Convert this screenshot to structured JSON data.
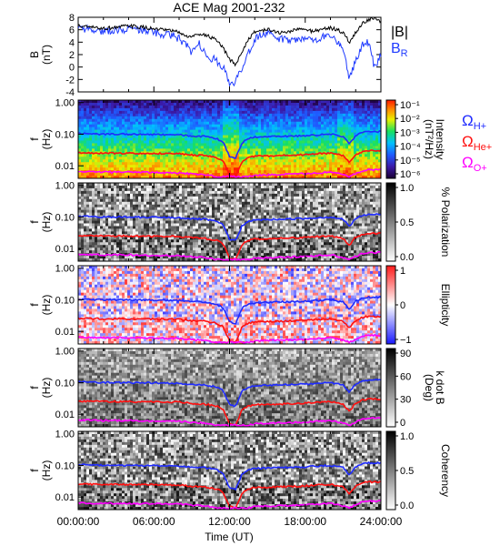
{
  "chart_data": {
    "type": "line",
    "title": "ACE Mag 2001-232",
    "xlabel": "Time (UT)",
    "x_range": [
      "00:00:00",
      "24:00:00"
    ],
    "x_ticks": [
      "00:00:00",
      "06:00:00",
      "12:00:00",
      "18:00:00",
      "24:00:00"
    ],
    "top_panel": {
      "ylabel_main": "B",
      "ylabel_unit": "(nT)",
      "ylim": [
        -4,
        8
      ],
      "y_ticks": [
        "8",
        "6",
        "4",
        "2",
        "0",
        "-2",
        "-4"
      ],
      "series": [
        {
          "name": "|B|",
          "color": "#000000",
          "x": [
            0,
            0.5,
            1,
            1.5,
            2,
            2.5,
            3,
            3.5,
            4,
            4.5,
            5,
            5.5,
            6,
            6.5,
            7,
            7.5,
            8,
            8.5,
            9,
            9.5,
            10,
            10.5,
            11,
            11.5,
            12,
            12.5,
            13,
            13.5,
            14,
            14.5,
            15,
            15.5,
            16,
            16.5,
            17,
            17.5,
            18,
            18.5,
            19,
            19.5,
            20,
            20.5,
            21,
            21.5,
            22,
            22.5,
            23,
            23.5,
            24
          ],
          "y": [
            6.6,
            6.5,
            6.4,
            6.3,
            6.2,
            6.3,
            6.4,
            6.5,
            6.6,
            6.5,
            6.4,
            6.3,
            6.1,
            6.0,
            5.9,
            5.8,
            5.6,
            5.0,
            4.8,
            5.4,
            5.2,
            4.8,
            4.2,
            3.0,
            1.2,
            0.4,
            2.5,
            4.5,
            5.6,
            5.9,
            6.0,
            5.8,
            5.5,
            5.6,
            5.9,
            6.1,
            6.0,
            5.8,
            5.9,
            6.2,
            6.3,
            6.0,
            5.5,
            4.0,
            5.5,
            7.0,
            7.6,
            7.8,
            7.2
          ]
        },
        {
          "name": "B_R",
          "color": "#1f3bff",
          "x": [
            0,
            0.5,
            1,
            1.5,
            2,
            2.5,
            3,
            3.5,
            4,
            4.5,
            5,
            5.5,
            6,
            6.5,
            7,
            7.5,
            8,
            8.5,
            9,
            9.5,
            10,
            10.5,
            11,
            11.5,
            12,
            12.5,
            13,
            13.5,
            14,
            14.5,
            15,
            15.5,
            16,
            16.5,
            17,
            17.5,
            18,
            18.5,
            19,
            19.5,
            20,
            20.5,
            21,
            21.5,
            22,
            22.5,
            23,
            23.5,
            24
          ],
          "y": [
            6.2,
            6.1,
            6.0,
            5.9,
            5.8,
            5.9,
            6.0,
            6.1,
            6.1,
            6.0,
            5.9,
            5.8,
            5.5,
            5.4,
            5.2,
            5.0,
            4.6,
            3.6,
            2.4,
            4.0,
            2.5,
            1.5,
            1.0,
            0.0,
            -2.8,
            -2.4,
            0.0,
            2.5,
            4.4,
            5.2,
            5.3,
            5.0,
            4.4,
            4.6,
            4.2,
            4.6,
            4.8,
            4.2,
            4.4,
            5.0,
            5.2,
            4.2,
            3.0,
            -1.8,
            1.0,
            3.5,
            4.0,
            0.0,
            2.0
          ]
        }
      ],
      "legend": [
        "|B|",
        "B",
        "R"
      ]
    },
    "spec_panels": [
      {
        "kind": "intensity",
        "cbar_label_main": "Intensity",
        "cbar_label_unit": "(nT²/Hz)",
        "cbar_ticks": [
          "10⁻¹",
          "10⁻²",
          "10⁻³",
          "10⁻⁴",
          "10⁻⁵",
          "10⁻⁶"
        ]
      },
      {
        "kind": "polarization",
        "cbar_label_main": "% Polarization",
        "cbar_label_unit": "",
        "cbar_ticks": [
          "1.0",
          "0.5",
          "0.0"
        ]
      },
      {
        "kind": "ellipticity",
        "cbar_label_main": "Ellipticity",
        "cbar_label_unit": "",
        "cbar_ticks": [
          "1",
          "0",
          "−1"
        ]
      },
      {
        "kind": "kdotb",
        "cbar_label_main": "k dot B",
        "cbar_label_unit": "(Deg)",
        "cbar_ticks": [
          "90",
          "60",
          "30",
          "0"
        ]
      },
      {
        "kind": "coherency",
        "cbar_label_main": "Coherency",
        "cbar_label_unit": "",
        "cbar_ticks": [
          "1.0",
          "0.5",
          "0.0"
        ]
      }
    ],
    "spec_y": {
      "ylabel_main": "f",
      "ylabel_unit": "(Hz)",
      "scale": "log",
      "ylim": [
        0.004,
        1.2
      ],
      "y_ticks": [
        "1.00",
        "0.10",
        "0.01"
      ]
    },
    "gyro_lines": [
      {
        "name": "Ω_H+",
        "color": "#1f2bff",
        "x": [
          0,
          2,
          4,
          6,
          8,
          9,
          10,
          11,
          11.5,
          12,
          12.5,
          13,
          13.5,
          14,
          16,
          18,
          19,
          20,
          21,
          21.5,
          22,
          22.5,
          23,
          24
        ],
        "y": [
          0.105,
          0.1,
          0.1,
          0.098,
          0.095,
          0.088,
          0.085,
          0.072,
          0.055,
          0.02,
          0.018,
          0.055,
          0.072,
          0.08,
          0.085,
          0.09,
          0.095,
          0.1,
          0.085,
          0.05,
          0.09,
          0.11,
          0.12,
          0.12
        ]
      },
      {
        "name": "Ω_He+",
        "color": "#ff1010",
        "x": [
          0,
          2,
          4,
          6,
          8,
          9,
          10,
          11,
          11.5,
          12,
          12.5,
          13,
          13.5,
          14,
          16,
          18,
          19,
          20,
          21,
          21.5,
          22,
          22.5,
          23,
          24
        ],
        "y": [
          0.026,
          0.025,
          0.025,
          0.0245,
          0.024,
          0.022,
          0.021,
          0.018,
          0.014,
          0.005,
          0.0045,
          0.014,
          0.018,
          0.02,
          0.021,
          0.0225,
          0.024,
          0.025,
          0.021,
          0.0125,
          0.0225,
          0.0275,
          0.03,
          0.03
        ]
      },
      {
        "name": "Ω_O+",
        "color": "#ff00ff",
        "x": [
          0,
          2,
          4,
          6,
          8,
          9,
          10,
          11,
          11.5,
          12,
          12.5,
          13,
          13.5,
          14,
          16,
          18,
          19,
          20,
          21,
          21.5,
          22,
          22.5,
          23,
          24
        ],
        "y": [
          0.0066,
          0.0063,
          0.0063,
          0.0061,
          0.006,
          0.0055,
          0.0053,
          0.0045,
          0.0045,
          0.0045,
          0.0045,
          0.0045,
          0.0045,
          0.005,
          0.0053,
          0.0056,
          0.006,
          0.0063,
          0.0053,
          0.0045,
          0.0056,
          0.0069,
          0.0075,
          0.0075
        ]
      }
    ],
    "right_legend": [
      {
        "sym": "Ω",
        "sub": "H+",
        "color": "#1f2bff"
      },
      {
        "sym": "Ω",
        "sub": "He+",
        "color": "#ff1010"
      },
      {
        "sym": "Ω",
        "sub": "O+",
        "color": "#ff00ff"
      }
    ]
  }
}
